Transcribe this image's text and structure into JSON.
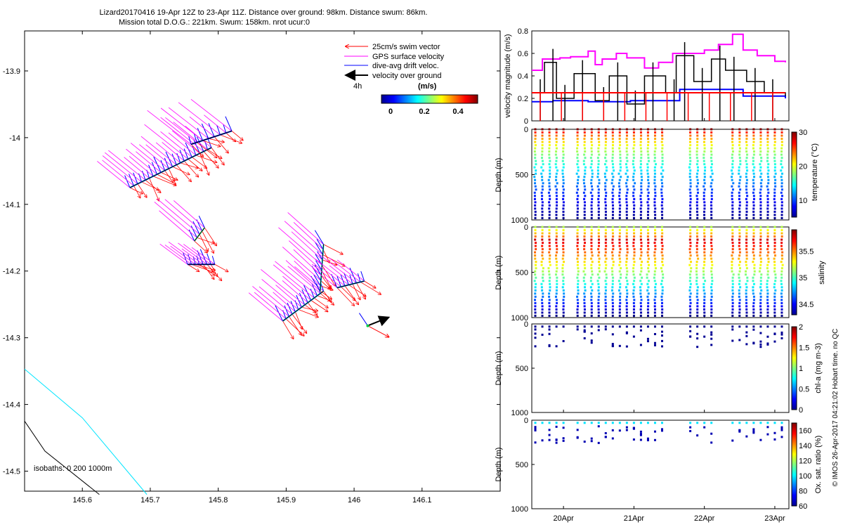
{
  "header": {
    "line1": "Lizard20170416 19-Apr 12Z to 23-Apr 11Z. Distance over ground: 98km. Distance swum: 86km.",
    "line2": "Mission total D.O.G.: 221km. Swum: 158km. nrot ucur:0"
  },
  "side_note": "© IMOS 26-Apr-2017 04:21:02 Hobart time. no QC",
  "chart_data": [
    {
      "type": "scatter",
      "name": "map",
      "x_ticks": [
        "145.6",
        "145.7",
        "145.8",
        "145.9",
        "146",
        "146.1"
      ],
      "y_ticks": [
        "-13.9",
        "-14",
        "-14.1",
        "-14.2",
        "-14.3",
        "-14.4",
        "-14.5"
      ],
      "xlim": [
        145.515,
        146.215
      ],
      "ylim": [
        -14.53,
        -13.84
      ],
      "legend": [
        {
          "label": "25cm/s swim vector",
          "color": "#ff0000"
        },
        {
          "label": "GPS surface velocity",
          "color": "#ff00ff"
        },
        {
          "label": "dive-avg drift veloc.",
          "color": "#0000ff"
        },
        {
          "label": "velocity over ground",
          "color": "#000000"
        }
      ],
      "legend_scale_label": "4h",
      "colorbar": {
        "label": "(m/s)",
        "ticks": [
          "0",
          "0.2",
          "0.4"
        ],
        "range": [
          0,
          0.5
        ]
      },
      "isobaths_label": "isobaths: 0    200   1000m",
      "isobaths": [
        {
          "depth": 200,
          "color": "#00e5ff",
          "points": [
            [
              145.515,
              -14.347
            ],
            [
              145.6,
              -14.42
            ],
            [
              145.695,
              -14.535
            ]
          ]
        },
        {
          "depth": 1000,
          "color": "#000000",
          "points": [
            [
              145.515,
              -14.425
            ],
            [
              145.545,
              -14.47
            ],
            [
              145.625,
              -14.535
            ]
          ]
        }
      ],
      "segments": [
        {
          "start": [
            145.67,
            -14.075
          ],
          "end": [
            145.79,
            -14.015
          ],
          "n": 22
        },
        {
          "start": [
            145.76,
            -14.01
          ],
          "end": [
            145.82,
            -13.99
          ],
          "n": 8
        },
        {
          "start": [
            145.755,
            -14.19
          ],
          "end": [
            145.795,
            -14.19
          ],
          "n": 8
        },
        {
          "start": [
            145.765,
            -14.155
          ],
          "end": [
            145.78,
            -14.135
          ],
          "n": 5
        },
        {
          "start": [
            145.895,
            -14.275
          ],
          "end": [
            145.955,
            -14.23
          ],
          "n": 14
        },
        {
          "start": [
            145.95,
            -14.23
          ],
          "end": [
            145.955,
            -14.16
          ],
          "n": 10
        },
        {
          "start": [
            145.975,
            -14.225
          ],
          "end": [
            146.015,
            -14.215
          ],
          "n": 8
        }
      ],
      "current_marker": {
        "at": [
          146.02,
          -14.282
        ],
        "vector": [
          0.03,
          0.01
        ]
      }
    },
    {
      "type": "line",
      "name": "velocity",
      "ylabel": "velocity magnitude (m/s)",
      "ylim": [
        0,
        0.8
      ],
      "y_ticks": [
        "0",
        "0.2",
        "0.4",
        "0.6",
        "0.8"
      ],
      "x_ticks": [
        "20Apr",
        "21Apr",
        "22Apr",
        "23Apr"
      ],
      "series": [
        {
          "color": "#ff00ff",
          "x": [
            0,
            0.15,
            0.4,
            0.55,
            0.8,
            0.9,
            1.0,
            1.2,
            1.35,
            1.6,
            1.8,
            2.0,
            2.2,
            2.45,
            2.65,
            2.85,
            3.0,
            3.2,
            3.45,
            3.6
          ],
          "y": [
            0.45,
            0.55,
            0.56,
            0.57,
            0.62,
            0.5,
            0.55,
            0.6,
            0.56,
            0.47,
            0.52,
            0.6,
            0.6,
            0.63,
            0.68,
            0.77,
            0.63,
            0.58,
            0.53,
            0.52
          ]
        },
        {
          "color": "#0000ff",
          "x": [
            0,
            0.3,
            0.8,
            1.4,
            2.1,
            2.5,
            3.0,
            3.6
          ],
          "y": [
            0.17,
            0.18,
            0.17,
            0.18,
            0.28,
            0.28,
            0.22,
            0.2
          ]
        },
        {
          "color": "#000000",
          "x": [
            0,
            0.18,
            0.35,
            0.6,
            0.9,
            1.1,
            1.35,
            1.6,
            1.9,
            2.05,
            2.3,
            2.55,
            2.75,
            3.05,
            3.3,
            3.6
          ],
          "y": [
            0.25,
            0.52,
            0.2,
            0.42,
            0.18,
            0.4,
            0.15,
            0.4,
            0.25,
            0.58,
            0.35,
            0.55,
            0.45,
            0.35,
            0.25,
            0.22
          ]
        },
        {
          "color": "#ff0000",
          "x": [
            0,
            0.3,
            0.6,
            0.9,
            1.2,
            1.5,
            1.8,
            2.1,
            2.4,
            2.7,
            3.0,
            3.3,
            3.6
          ],
          "y": [
            0.25,
            0.25,
            0.25,
            0.25,
            0.25,
            0.25,
            0.25,
            0.25,
            0.25,
            0.25,
            0.25,
            0.25,
            0.25
          ]
        }
      ]
    },
    {
      "type": "scatter",
      "name": "temperature",
      "ylabel": "Depth (m)",
      "ylim": [
        1000,
        0
      ],
      "y_ticks": [
        "0",
        "500",
        "1000"
      ],
      "colorbar": {
        "label": "temperature (°C)",
        "ticks": [
          "10",
          "20",
          "30"
        ],
        "range": [
          5,
          30
        ]
      },
      "full_depth": true
    },
    {
      "type": "scatter",
      "name": "salinity",
      "ylabel": "Depth (m)",
      "ylim": [
        1000,
        0
      ],
      "y_ticks": [
        "0",
        "500",
        "1000"
      ],
      "colorbar": {
        "label": "salinity",
        "ticks": [
          "34.5",
          "35",
          "35.5"
        ],
        "range": [
          34.3,
          35.9
        ]
      },
      "full_depth": true
    },
    {
      "type": "scatter",
      "name": "chl",
      "ylabel": "Depth (m)",
      "ylim": [
        1000,
        0
      ],
      "y_ticks": [
        "0",
        "500",
        "1000"
      ],
      "colorbar": {
        "label": "chl-a (mg m-3)",
        "ticks": [
          "0",
          "0.5",
          "1",
          "1.5",
          "2"
        ],
        "range": [
          0,
          2
        ]
      },
      "full_depth": false
    },
    {
      "type": "scatter",
      "name": "oxy",
      "ylabel": "Depth (m)",
      "ylim": [
        1000,
        0
      ],
      "y_ticks": [
        "0",
        "500",
        "1000"
      ],
      "x_ticks": [
        "20Apr",
        "21Apr",
        "22Apr",
        "23Apr"
      ],
      "colorbar": {
        "label": "Ox. sat. ratio (%)",
        "ticks": [
          "60",
          "80",
          "100",
          "120",
          "140",
          "160"
        ],
        "range": [
          60,
          170
        ]
      },
      "full_depth": false
    }
  ]
}
